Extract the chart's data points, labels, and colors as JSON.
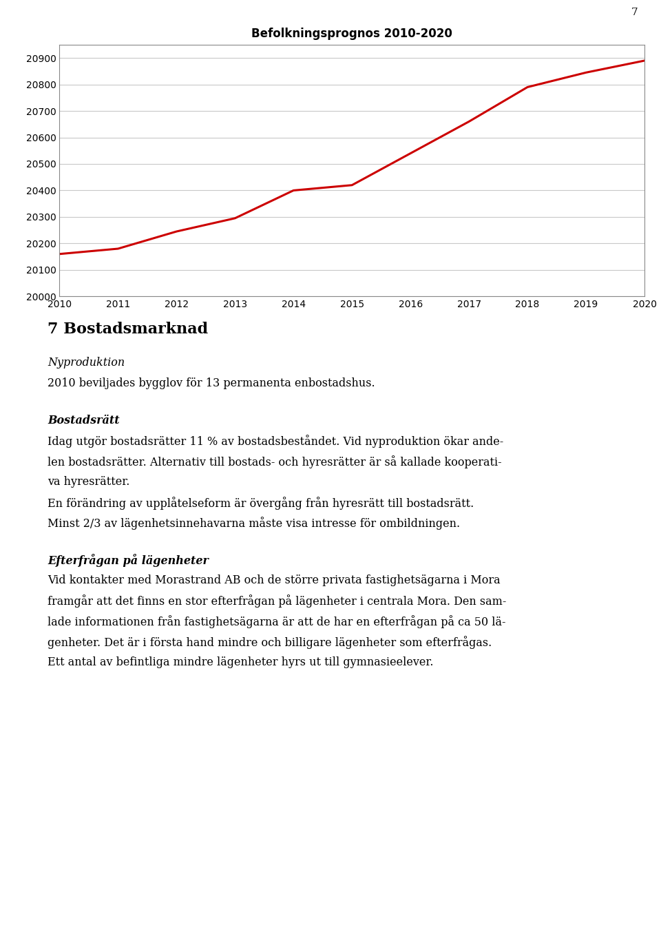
{
  "title": "Befolkningsprognos 2010-2020",
  "page_number": "7",
  "x_values": [
    2010,
    2011,
    2012,
    2013,
    2014,
    2015,
    2016,
    2017,
    2018,
    2019,
    2020
  ],
  "y_values": [
    20160,
    20180,
    20245,
    20295,
    20400,
    20420,
    20540,
    20660,
    20790,
    20845,
    20890
  ],
  "line_color": "#CC0000",
  "line_width": 2.2,
  "ylim": [
    20000,
    20950
  ],
  "yticks": [
    20000,
    20100,
    20200,
    20300,
    20400,
    20500,
    20600,
    20700,
    20800,
    20900
  ],
  "xlim_min": 2010,
  "xlim_max": 2020,
  "chart_bg": "#ffffff",
  "grid_color": "#c8c8c8",
  "heading1": "7 Bostadsmarknad",
  "section1_title": "Nyproduktion",
  "section1_text": "2010 beviljades bygglov för 13 permanenta enbostadshus.",
  "section2_title": "Bostadsrätt",
  "section2_para1_line1": "Idag utgör bostadsrätter 11 % av bostadsbeståndet. Vid nyproduktion ökar ande-",
  "section2_para1_line2": "len bostadsrätter. Alternativ till bostads- och hyresrätter är så kallade kooperati-",
  "section2_para1_line3": "va hyresrätter.",
  "section2_para2": "En förändring av upplåtelseform är övergång från hyresrätt till bostadsrätt.",
  "section2_para3": "Minst 2/3 av lägenhetsinnehavarna måste visa intresse för ombildningen.",
  "section3_title": "Efterfrågan på lägenheter",
  "section3_para1_line1": "Vid kontakter med Morastrand AB och de större privata fastighetsägarna i Mora",
  "section3_para1_line2": "framgår att det finns en stor efterfrågan på lägenheter i centrala Mora. Den sam-",
  "section3_para1_line3": "lade informationen från fastighetsägarna är att de har en efterfrågan på ca 50 lä-",
  "section3_para1_line4": "genheter. Det är i första hand mindre och billigare lägenheter som efterfrågas.",
  "section3_para2": "Ett antal av befintliga mindre lägenheter hyrs ut till gymnasieelever.",
  "body_fontsize": 11.5,
  "title_fontsize": 12,
  "chart_border_color": "#888888"
}
